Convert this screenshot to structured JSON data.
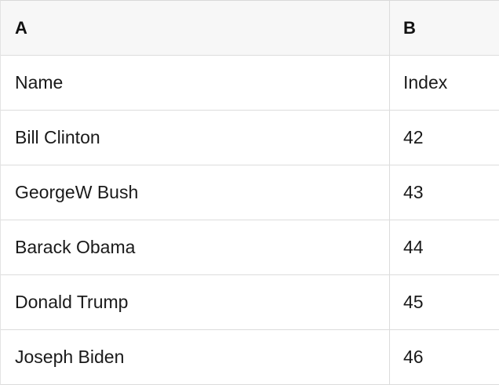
{
  "table": {
    "column_headers": [
      "A",
      "B"
    ],
    "rows": [
      {
        "a": "Name",
        "b": "Index"
      },
      {
        "a": "Bill Clinton",
        "b": "42"
      },
      {
        "a": "GeorgeW Bush",
        "b": "43"
      },
      {
        "a": "Barack Obama",
        "b": "44"
      },
      {
        "a": "Donald Trump",
        "b": "45"
      },
      {
        "a": "Joseph Biden",
        "b": "46"
      }
    ]
  },
  "colors": {
    "header_background": "#f7f7f7",
    "row_background": "#ffffff",
    "border": "#dcdcdc",
    "text": "#1a1a1a"
  }
}
